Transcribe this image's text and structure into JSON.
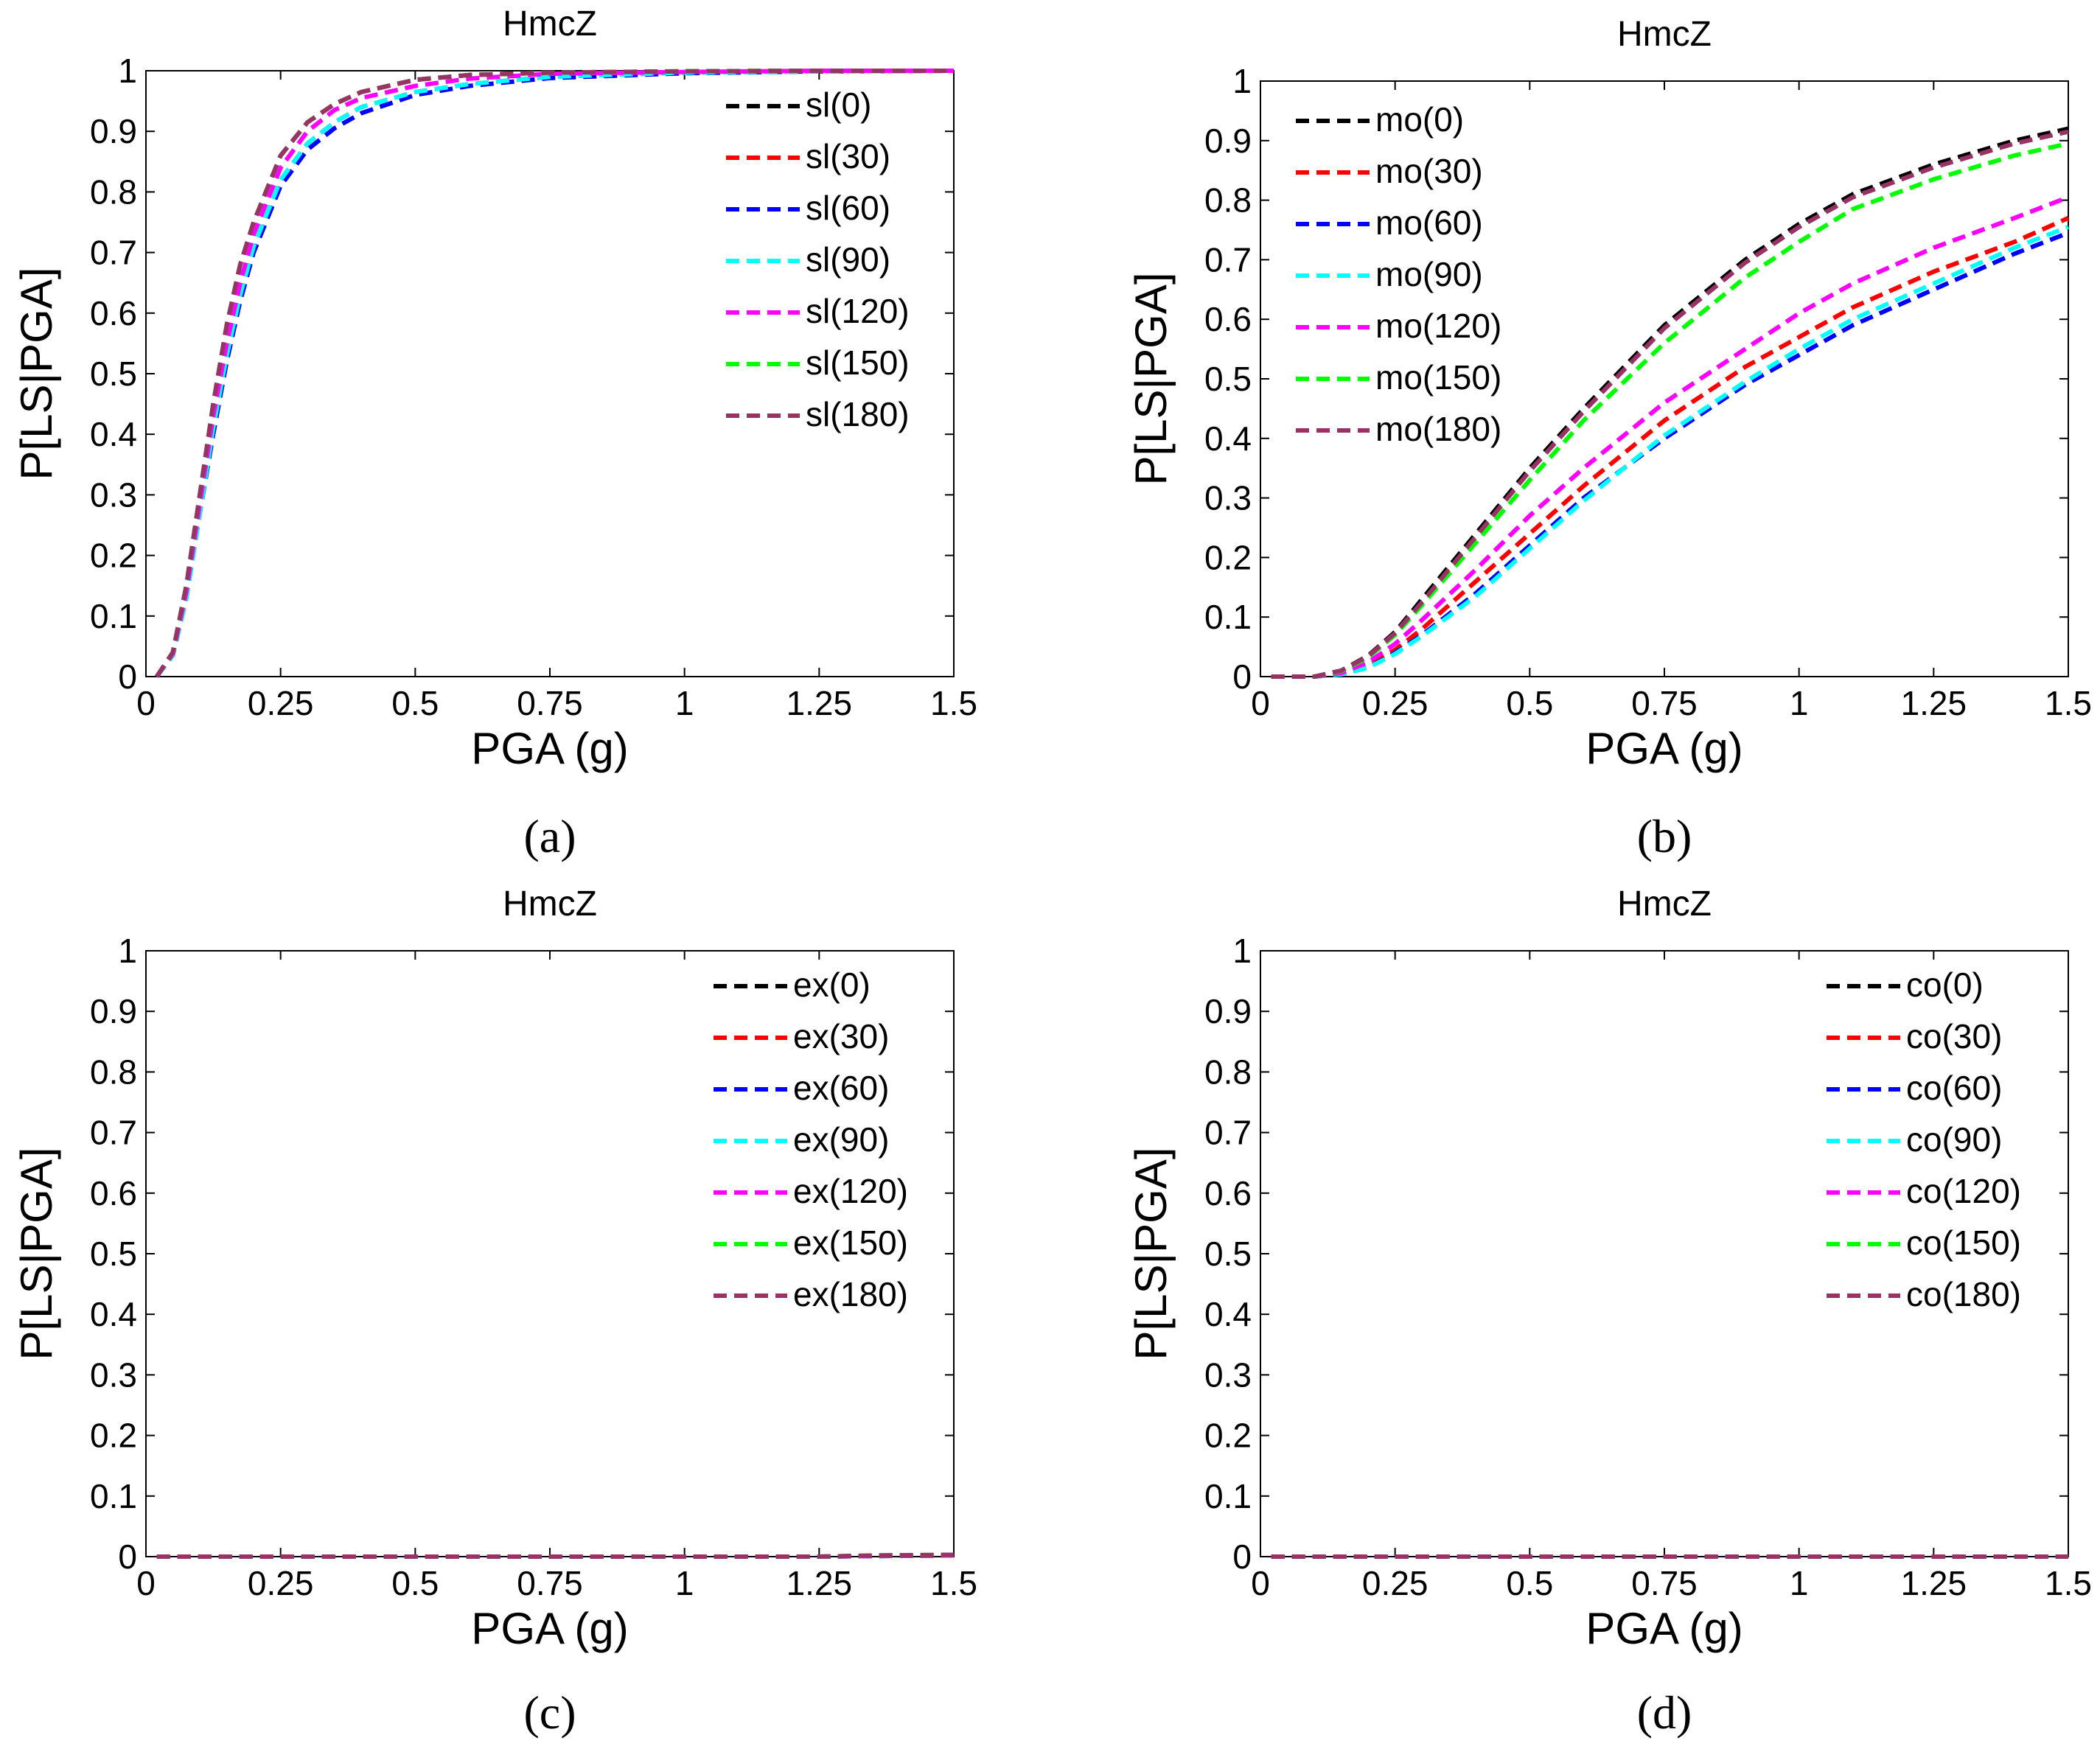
{
  "chart_data": [
    {
      "type": "line",
      "panel": "a",
      "caption": "(a)",
      "title": "HmcZ",
      "xlabel": "PGA (g)",
      "ylabel": "P[LS|PGA]",
      "xlim": [
        0,
        1.5
      ],
      "ylim": [
        0,
        1
      ],
      "xticks": [
        0,
        0.25,
        0.5,
        0.75,
        1,
        1.25,
        1.5
      ],
      "xtick_labels": [
        "0",
        "0.25",
        "0.5",
        "0.75",
        "1",
        "1.25",
        "1.5"
      ],
      "yticks": [
        0,
        0.1,
        0.2,
        0.3,
        0.4,
        0.5,
        0.6,
        0.7,
        0.8,
        0.9,
        1
      ],
      "ytick_labels": [
        "0",
        "0.1",
        "0.2",
        "0.3",
        "0.4",
        "0.5",
        "0.6",
        "0.7",
        "0.8",
        "0.9",
        "1"
      ],
      "grid": false,
      "legend_position": "top-right",
      "x": [
        0.02,
        0.05,
        0.075,
        0.1,
        0.125,
        0.15,
        0.175,
        0.2,
        0.25,
        0.3,
        0.35,
        0.4,
        0.5,
        0.6,
        0.75,
        1.0,
        1.25,
        1.5
      ],
      "series": [
        {
          "name": "sl(0)",
          "color": "#000000",
          "values": [
            0.0,
            0.04,
            0.15,
            0.3,
            0.45,
            0.58,
            0.68,
            0.75,
            0.86,
            0.915,
            0.945,
            0.965,
            0.985,
            0.993,
            0.997,
            0.999,
            1.0,
            1.0
          ]
        },
        {
          "name": "sl(30)",
          "color": "#ff0000",
          "values": [
            0.0,
            0.035,
            0.13,
            0.27,
            0.41,
            0.53,
            0.63,
            0.71,
            0.82,
            0.88,
            0.915,
            0.94,
            0.965,
            0.978,
            0.99,
            0.997,
            0.999,
            1.0
          ]
        },
        {
          "name": "sl(60)",
          "color": "#0000ff",
          "values": [
            0.0,
            0.035,
            0.13,
            0.27,
            0.4,
            0.52,
            0.62,
            0.7,
            0.81,
            0.87,
            0.905,
            0.93,
            0.96,
            0.975,
            0.988,
            0.996,
            0.999,
            1.0
          ]
        },
        {
          "name": "sl(90)",
          "color": "#00ffff",
          "values": [
            0.0,
            0.035,
            0.13,
            0.27,
            0.41,
            0.53,
            0.63,
            0.71,
            0.82,
            0.88,
            0.915,
            0.94,
            0.965,
            0.978,
            0.99,
            0.997,
            0.999,
            1.0
          ]
        },
        {
          "name": "sl(120)",
          "color": "#ff00ff",
          "values": [
            0.0,
            0.038,
            0.14,
            0.285,
            0.43,
            0.55,
            0.65,
            0.73,
            0.84,
            0.9,
            0.935,
            0.955,
            0.975,
            0.987,
            0.995,
            0.998,
            1.0,
            1.0
          ]
        },
        {
          "name": "sl(150)",
          "color": "#00ff00",
          "values": [
            0.0,
            0.04,
            0.15,
            0.3,
            0.45,
            0.58,
            0.68,
            0.75,
            0.86,
            0.915,
            0.945,
            0.965,
            0.985,
            0.993,
            0.997,
            0.999,
            1.0,
            1.0
          ]
        },
        {
          "name": "sl(180)",
          "color": "#993366",
          "values": [
            0.0,
            0.04,
            0.15,
            0.3,
            0.45,
            0.58,
            0.68,
            0.75,
            0.86,
            0.915,
            0.945,
            0.965,
            0.985,
            0.993,
            0.997,
            0.999,
            1.0,
            1.0
          ]
        }
      ]
    },
    {
      "type": "line",
      "panel": "b",
      "caption": "(b)",
      "title": "HmcZ",
      "xlabel": "PGA (g)",
      "ylabel": "P[LS|PGA]",
      "xlim": [
        0,
        1.5
      ],
      "ylim": [
        0,
        1
      ],
      "xticks": [
        0,
        0.25,
        0.5,
        0.75,
        1,
        1.25,
        1.5
      ],
      "xtick_labels": [
        "0",
        "0.25",
        "0.5",
        "0.75",
        "1",
        "1.25",
        "1.5"
      ],
      "yticks": [
        0,
        0.1,
        0.2,
        0.3,
        0.4,
        0.5,
        0.6,
        0.7,
        0.8,
        0.9,
        1
      ],
      "ytick_labels": [
        "0",
        "0.1",
        "0.2",
        "0.3",
        "0.4",
        "0.5",
        "0.6",
        "0.7",
        "0.8",
        "0.9",
        "1"
      ],
      "grid": false,
      "legend_position": "top-left",
      "x": [
        0.02,
        0.1,
        0.15,
        0.2,
        0.25,
        0.3,
        0.4,
        0.5,
        0.6,
        0.75,
        0.9,
        1.0,
        1.1,
        1.25,
        1.4,
        1.5
      ],
      "series": [
        {
          "name": "mo(0)",
          "color": "#000000",
          "values": [
            0.0,
            0.0,
            0.01,
            0.035,
            0.075,
            0.13,
            0.24,
            0.35,
            0.45,
            0.59,
            0.7,
            0.76,
            0.81,
            0.86,
            0.9,
            0.92
          ]
        },
        {
          "name": "mo(30)",
          "color": "#ff0000",
          "values": [
            0.0,
            0.0,
            0.005,
            0.02,
            0.045,
            0.08,
            0.16,
            0.24,
            0.32,
            0.43,
            0.52,
            0.57,
            0.62,
            0.68,
            0.73,
            0.77
          ]
        },
        {
          "name": "mo(60)",
          "color": "#0000ff",
          "values": [
            0.0,
            0.0,
            0.004,
            0.015,
            0.04,
            0.07,
            0.14,
            0.22,
            0.3,
            0.4,
            0.49,
            0.54,
            0.59,
            0.65,
            0.71,
            0.745
          ]
        },
        {
          "name": "mo(90)",
          "color": "#00ffff",
          "values": [
            0.0,
            0.0,
            0.004,
            0.015,
            0.038,
            0.068,
            0.135,
            0.215,
            0.295,
            0.405,
            0.495,
            0.55,
            0.6,
            0.66,
            0.72,
            0.755
          ]
        },
        {
          "name": "mo(120)",
          "color": "#ff00ff",
          "values": [
            0.0,
            0.0,
            0.006,
            0.024,
            0.055,
            0.095,
            0.18,
            0.27,
            0.35,
            0.46,
            0.55,
            0.61,
            0.66,
            0.72,
            0.77,
            0.805
          ]
        },
        {
          "name": "mo(150)",
          "color": "#00ff00",
          "values": [
            0.0,
            0.0,
            0.009,
            0.032,
            0.07,
            0.12,
            0.225,
            0.33,
            0.43,
            0.56,
            0.67,
            0.73,
            0.785,
            0.835,
            0.875,
            0.895
          ]
        },
        {
          "name": "mo(180)",
          "color": "#993366",
          "values": [
            0.0,
            0.0,
            0.01,
            0.034,
            0.073,
            0.125,
            0.235,
            0.345,
            0.445,
            0.585,
            0.695,
            0.755,
            0.805,
            0.855,
            0.895,
            0.915
          ]
        }
      ]
    },
    {
      "type": "line",
      "panel": "c",
      "caption": "(c)",
      "title": "HmcZ",
      "xlabel": "PGA (g)",
      "ylabel": "P[LS|PGA]",
      "xlim": [
        0,
        1.5
      ],
      "ylim": [
        0,
        1
      ],
      "xticks": [
        0,
        0.25,
        0.5,
        0.75,
        1,
        1.25,
        1.5
      ],
      "xtick_labels": [
        "0",
        "0.25",
        "0.5",
        "0.75",
        "1",
        "1.25",
        "1.5"
      ],
      "yticks": [
        0,
        0.1,
        0.2,
        0.3,
        0.4,
        0.5,
        0.6,
        0.7,
        0.8,
        0.9,
        1
      ],
      "ytick_labels": [
        "0",
        "0.1",
        "0.2",
        "0.3",
        "0.4",
        "0.5",
        "0.6",
        "0.7",
        "0.8",
        "0.9",
        "1"
      ],
      "grid": false,
      "legend_position": "top-right",
      "x": [
        0.02,
        0.25,
        0.5,
        0.75,
        1.0,
        1.25,
        1.35,
        1.5
      ],
      "series": [
        {
          "name": "ex(0)",
          "color": "#000000",
          "values": [
            0,
            0,
            0,
            0,
            0,
            0,
            0.001,
            0.002
          ]
        },
        {
          "name": "ex(30)",
          "color": "#ff0000",
          "values": [
            0,
            0,
            0,
            0,
            0,
            0,
            0.001,
            0.002
          ]
        },
        {
          "name": "ex(60)",
          "color": "#0000ff",
          "values": [
            0,
            0,
            0,
            0,
            0,
            0,
            0.001,
            0.002
          ]
        },
        {
          "name": "ex(90)",
          "color": "#00ffff",
          "values": [
            0,
            0,
            0,
            0,
            0,
            0,
            0.001,
            0.002
          ]
        },
        {
          "name": "ex(120)",
          "color": "#ff00ff",
          "values": [
            0,
            0,
            0,
            0,
            0,
            0,
            0.001,
            0.002
          ]
        },
        {
          "name": "ex(150)",
          "color": "#00ff00",
          "values": [
            0,
            0,
            0,
            0,
            0,
            0,
            0.002,
            0.003
          ]
        },
        {
          "name": "ex(180)",
          "color": "#993366",
          "values": [
            0,
            0,
            0,
            0,
            0,
            0,
            0.002,
            0.003
          ]
        }
      ]
    },
    {
      "type": "line",
      "panel": "d",
      "caption": "(d)",
      "title": "HmcZ",
      "xlabel": "PGA (g)",
      "ylabel": "P[LS|PGA]",
      "xlim": [
        0,
        1.5
      ],
      "ylim": [
        0,
        1
      ],
      "xticks": [
        0,
        0.25,
        0.5,
        0.75,
        1,
        1.25,
        1.5
      ],
      "xtick_labels": [
        "0",
        "0.25",
        "0.5",
        "0.75",
        "1",
        "1.25",
        "1.5"
      ],
      "yticks": [
        0,
        0.1,
        0.2,
        0.3,
        0.4,
        0.5,
        0.6,
        0.7,
        0.8,
        0.9,
        1
      ],
      "ytick_labels": [
        "0",
        "0.1",
        "0.2",
        "0.3",
        "0.4",
        "0.5",
        "0.6",
        "0.7",
        "0.8",
        "0.9",
        "1"
      ],
      "grid": false,
      "legend_position": "top-right",
      "x": [
        0.02,
        0.5,
        1.0,
        1.5
      ],
      "series": [
        {
          "name": "co(0)",
          "color": "#000000",
          "values": [
            0,
            0,
            0,
            0
          ]
        },
        {
          "name": "co(30)",
          "color": "#ff0000",
          "values": [
            0,
            0,
            0,
            0
          ]
        },
        {
          "name": "co(60)",
          "color": "#0000ff",
          "values": [
            0,
            0,
            0,
            0
          ]
        },
        {
          "name": "co(90)",
          "color": "#00ffff",
          "values": [
            0,
            0,
            0,
            0
          ]
        },
        {
          "name": "co(120)",
          "color": "#ff00ff",
          "values": [
            0,
            0,
            0,
            0
          ]
        },
        {
          "name": "co(150)",
          "color": "#00ff00",
          "values": [
            0,
            0,
            0,
            0
          ]
        },
        {
          "name": "co(180)",
          "color": "#993366",
          "values": [
            0,
            0,
            0,
            0
          ]
        }
      ]
    }
  ]
}
